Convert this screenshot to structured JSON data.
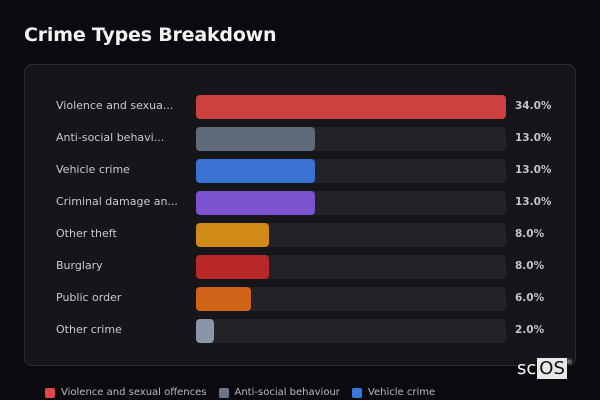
{
  "header": {
    "title": "Crime Types Breakdown"
  },
  "chart_data": {
    "type": "bar",
    "orientation": "horizontal",
    "title": "Crime Types Breakdown",
    "categories": [
      "Violence and sexual offences",
      "Anti-social behaviour",
      "Vehicle crime",
      "Criminal damage and arson",
      "Other theft",
      "Burglary",
      "Public order",
      "Other crime"
    ],
    "display_labels": [
      "Violence and sexua...",
      "Anti-social behavi...",
      "Vehicle crime",
      "Criminal damage an...",
      "Other theft",
      "Burglary",
      "Public order",
      "Other crime"
    ],
    "values": [
      34.0,
      13.0,
      13.0,
      13.0,
      8.0,
      8.0,
      6.0,
      2.0
    ],
    "value_labels": [
      "34.0%",
      "13.0%",
      "13.0%",
      "13.0%",
      "8.0%",
      "8.0%",
      "6.0%",
      "2.0%"
    ],
    "colors": [
      "#cc4040",
      "#5f6b7a",
      "#3a72d4",
      "#7b52d0",
      "#d08a18",
      "#b82828",
      "#d06418",
      "#8a96a8"
    ],
    "unit": "%",
    "xlim": [
      0,
      34
    ],
    "grid": false,
    "legend_position": "bottom"
  },
  "legend": {
    "items": [
      {
        "label": "Violence and sexual offences",
        "color": "#e04848"
      },
      {
        "label": "Anti-social behaviour",
        "color": "#6a7688"
      },
      {
        "label": "Vehicle crime",
        "color": "#3a78e0"
      }
    ]
  },
  "watermark": {
    "prefix": "sc",
    "boxed": "OS",
    "mark": "®"
  }
}
